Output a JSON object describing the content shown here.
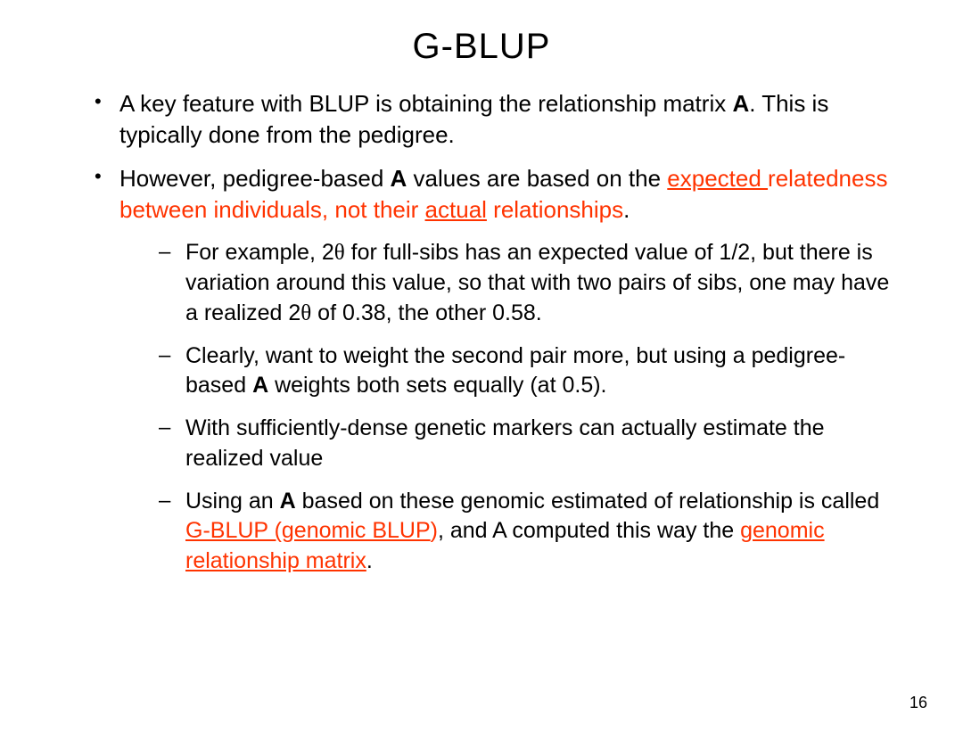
{
  "title": "G-BLUP",
  "theta_char": "θ",
  "highlight_color": "#ff3300",
  "text_color": "#000000",
  "background_color": "#ffffff",
  "font_family": "Comic Sans MS",
  "title_fontsize": 40,
  "body_fontsize": 26,
  "sub_fontsize": 25,
  "page_number": "16",
  "bullets": [
    {
      "segments": [
        {
          "t": "A key feature with BLUP is obtaining the relationship matrix "
        },
        {
          "t": "A",
          "bold": true
        },
        {
          "t": ".  This is typically done from the pedigree."
        }
      ]
    },
    {
      "segments": [
        {
          "t": "However, pedigree-based "
        },
        {
          "t": "A",
          "bold": true
        },
        {
          "t": " values are based on the "
        },
        {
          "t": "expected ",
          "hl": true,
          "ul": true
        },
        {
          "t": "relatedness between individuals, not their ",
          "hl": true
        },
        {
          "t": "actual",
          "hl": true,
          "ul": true
        },
        {
          "t": " relationships",
          "hl": true
        },
        {
          "t": "."
        }
      ],
      "sub": [
        {
          "segments": [
            {
              "t": "For example, 2"
            },
            {
              "t": "θ",
              "theta": true
            },
            {
              "t": " for full-sibs has an expected value of 1/2, but there is variation around this value, so that with two pairs of sibs, one may have a realized 2"
            },
            {
              "t": "θ",
              "theta": true
            },
            {
              "t": " of 0.38, the other 0.58."
            }
          ]
        },
        {
          "segments": [
            {
              "t": "Clearly, want to weight the second pair more, but using a pedigree-based "
            },
            {
              "t": "A",
              "bold": true
            },
            {
              "t": " weights both sets equally (at 0.5)."
            }
          ]
        },
        {
          "segments": [
            {
              "t": "With sufficiently-dense genetic markers can actually estimate the realized value"
            }
          ]
        },
        {
          "segments": [
            {
              "t": "Using an "
            },
            {
              "t": "A",
              "bold": true
            },
            {
              "t": " based on these genomic estimated of relationship is called "
            },
            {
              "t": "G-BLUP (genomic BLUP",
              "hl": true,
              "ul": true
            },
            {
              "t": ")",
              "hl": true
            },
            {
              "t": ", and A computed this way the "
            },
            {
              "t": "genomic relationship matrix",
              "hl": true,
              "ul": true
            },
            {
              "t": "."
            }
          ]
        }
      ]
    }
  ]
}
